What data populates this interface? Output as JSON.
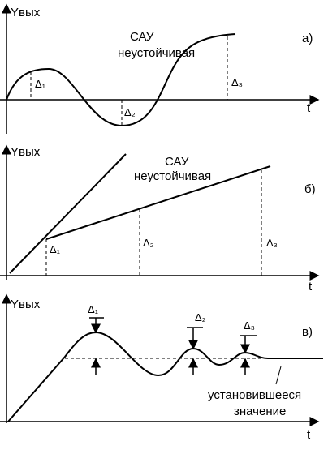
{
  "panels": [
    {
      "y_label": "Yвых",
      "x_label": "t",
      "tag": "а)",
      "title": [
        "САУ",
        "неустойчивая"
      ],
      "deltas": [
        "Δ₁",
        "Δ₂",
        "Δ₃"
      ]
    },
    {
      "y_label": "Yвых",
      "x_label": "t",
      "tag": "б)",
      "title": [
        "САУ",
        "неустойчивая"
      ],
      "deltas": [
        "Δ₁",
        "Δ₂",
        "Δ₃"
      ]
    },
    {
      "y_label": "Yвых",
      "x_label": "t",
      "tag": "в)",
      "deltas": [
        "Δ₁",
        "Δ₂",
        "Δ₃"
      ],
      "note": [
        "установившееся",
        "значение"
      ]
    }
  ]
}
